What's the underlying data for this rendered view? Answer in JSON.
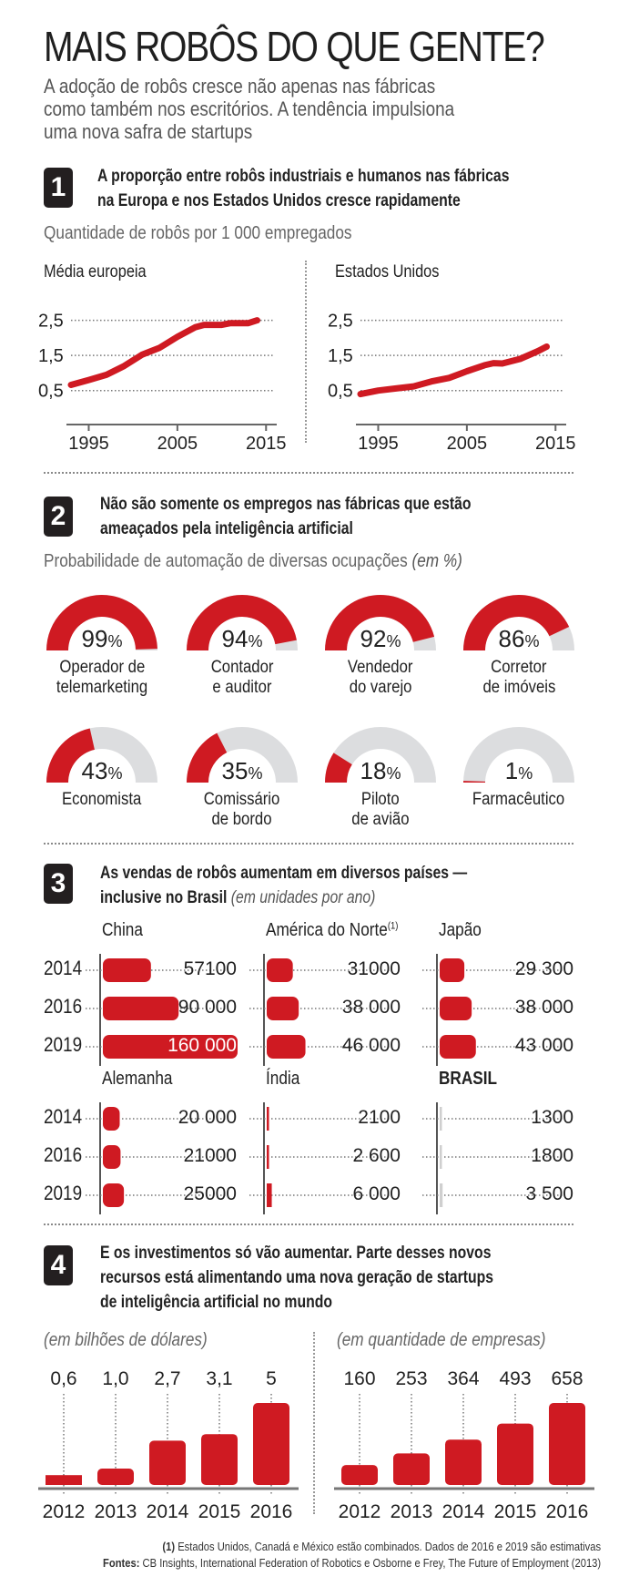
{
  "header": {
    "title": "MAIS ROBÔS DO QUE GENTE?",
    "subtitle_lines": [
      "A adoção de robôs cresce não apenas nas fábricas",
      "como também nos escritórios. A tendência impulsiona",
      "uma nova safra de startups"
    ]
  },
  "section1": {
    "number": "1",
    "heading_lines": [
      "A proporção entre robôs industriais e humanos nas fábricas",
      "na Europa e nos Estados Unidos cresce rapidamente"
    ],
    "subheading": "Quantidade de robôs por 1 000 empregados"
  },
  "section2": {
    "number": "2",
    "heading_lines": [
      "Não são somente os empregos nas fábricas que estão",
      "ameaçados pela inteligência artificial"
    ],
    "subheading": "Probabilidade de automação de diversas ocupações",
    "subheading_unit": "(em %)"
  },
  "section3": {
    "number": "3",
    "heading_lines": [
      "As vendas de robôs aumentam em diversos países —",
      "inclusive no Brasil"
    ],
    "heading_unit": "(em unidades por ano)"
  },
  "section4": {
    "number": "4",
    "heading_lines": [
      "E os investimentos só vão aumentar. Parte desses novos",
      "recursos está alimentando uma nova geração de startups",
      "de inteligência artificial no mundo"
    ]
  },
  "footer": {
    "note_marker": "(1)",
    "note": "Estados Unidos, Canadá e México estão combinados. Dados de 2016 e 2019 são estimativas",
    "sources_label": "Fontes:",
    "sources": "CB Insights, International Federation of Robotics e Osborne e Frey, The Future of Employment (2013)"
  },
  "colors": {
    "accent": "#cf1a22",
    "gray": "#dcdddf",
    "dark": "#231f20"
  },
  "chart_data": [
    {
      "id": "europe",
      "type": "line",
      "title": "Média europeia",
      "ylabel": "Quantidade de robôs por 1 000 empregados",
      "xlim": [
        1993,
        2016
      ],
      "ylim": [
        0,
        2.8
      ],
      "xticks": [
        "1995",
        "2005",
        "2015"
      ],
      "yticks": [
        "0,5",
        "1,5",
        "2,5"
      ],
      "x": [
        1993,
        1995,
        1997,
        1999,
        2001,
        2003,
        2005,
        2007,
        2008,
        2010,
        2011,
        2013,
        2014
      ],
      "y": [
        0.66,
        0.8,
        0.95,
        1.2,
        1.52,
        1.72,
        2.03,
        2.3,
        2.37,
        2.37,
        2.42,
        2.42,
        2.5
      ]
    },
    {
      "id": "usa",
      "type": "line",
      "title": "Estados Unidos",
      "ylabel": "Quantidade de robôs por 1 000 empregados",
      "xlim": [
        1993,
        2016
      ],
      "ylim": [
        0,
        2.8
      ],
      "xticks": [
        "1995",
        "2005",
        "2015"
      ],
      "yticks": [
        "0,5",
        "1,5",
        "2,5"
      ],
      "x": [
        1993,
        1995,
        1997,
        1999,
        2001,
        2003,
        2005,
        2007,
        2008,
        2009,
        2011,
        2013,
        2014
      ],
      "y": [
        0.4,
        0.5,
        0.56,
        0.62,
        0.76,
        0.86,
        1.05,
        1.22,
        1.28,
        1.27,
        1.4,
        1.62,
        1.75
      ]
    },
    {
      "id": "automation",
      "type": "gauge",
      "title": "Probabilidade de automação de diversas ocupações (em %)",
      "items": [
        {
          "label_lines": [
            "Operador de",
            "telemarketing"
          ],
          "value": 99
        },
        {
          "label_lines": [
            "Contador",
            "e auditor"
          ],
          "value": 94
        },
        {
          "label_lines": [
            "Vendedor",
            "do varejo"
          ],
          "value": 92
        },
        {
          "label_lines": [
            "Corretor",
            "de imóveis"
          ],
          "value": 86
        },
        {
          "label_lines": [
            "Economista"
          ],
          "value": 43
        },
        {
          "label_lines": [
            "Comissário",
            "de bordo"
          ],
          "value": 35
        },
        {
          "label_lines": [
            "Piloto",
            "de avião"
          ],
          "value": 18
        },
        {
          "label_lines": [
            "Farmacêutico"
          ],
          "value": 1
        }
      ]
    },
    {
      "id": "robot_sales",
      "type": "bar",
      "orientation": "horizontal",
      "title": "Vendas de robôs (em unidades por ano)",
      "years": [
        "2014",
        "2016",
        "2019"
      ],
      "groups": [
        {
          "name": "China",
          "values": [
            57100,
            90000,
            160000
          ],
          "labels": [
            "57100",
            "90 000",
            "160 000"
          ]
        },
        {
          "name": "América do Norte",
          "sup": "(1)",
          "values": [
            31000,
            38000,
            46000
          ],
          "labels": [
            "31000",
            "38 000",
            "46 000"
          ]
        },
        {
          "name": "Japão",
          "values": [
            29300,
            38000,
            43000
          ],
          "labels": [
            "29 300",
            "38 000",
            "43 000"
          ]
        },
        {
          "name": "Alemanha",
          "values": [
            20000,
            21000,
            25000
          ],
          "labels": [
            "20 000",
            "21000",
            "25000"
          ]
        },
        {
          "name": "Índia",
          "values": [
            2100,
            2600,
            6000
          ],
          "labels": [
            "2100",
            "2 600",
            "6 000"
          ]
        },
        {
          "name": "BRASIL",
          "bold": true,
          "values": [
            1300,
            1800,
            3500
          ],
          "labels": [
            "1300",
            "1800",
            "3 500"
          ]
        }
      ]
    },
    {
      "id": "investment",
      "type": "bar",
      "title": "(em bilhões de dólares)",
      "categories": [
        "2012",
        "2013",
        "2014",
        "2015",
        "2016"
      ],
      "values": [
        0.6,
        1.0,
        2.7,
        3.1,
        5
      ],
      "labels": [
        "0,6",
        "1,0",
        "2,7",
        "3,1",
        "5"
      ],
      "ylim": [
        0,
        5
      ]
    },
    {
      "id": "companies",
      "type": "bar",
      "title": "(em quantidade de empresas)",
      "categories": [
        "2012",
        "2013",
        "2014",
        "2015",
        "2016"
      ],
      "values": [
        160,
        253,
        364,
        493,
        658
      ],
      "labels": [
        "160",
        "253",
        "364",
        "493",
        "658"
      ],
      "ylim": [
        0,
        658
      ]
    }
  ]
}
